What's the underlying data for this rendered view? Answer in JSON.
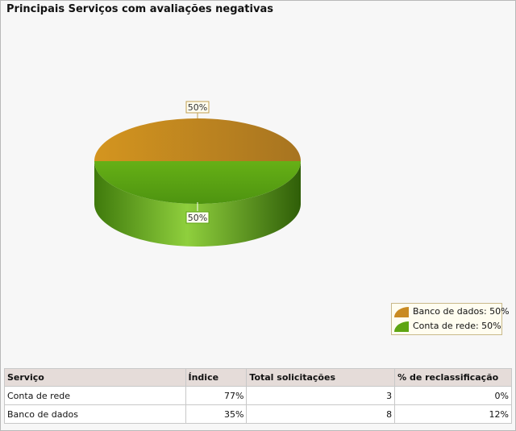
{
  "title": "Principais Serviços com avaliações negativas",
  "chart_data": {
    "type": "pie",
    "labels": [
      "Banco de dados",
      "Conta de rede"
    ],
    "values": [
      50,
      50
    ],
    "colors": [
      "#c98b23",
      "#5ea512"
    ],
    "data_labels": [
      "50%",
      "50%"
    ],
    "legend": [
      "Banco de dados: 50%",
      "Conta de rede: 50%"
    ],
    "legend_position": "bottom-right"
  },
  "table": {
    "headers": [
      "Serviço",
      "Índice",
      "Total solicitações",
      "% de reclassificação"
    ],
    "rows": [
      [
        "Conta de rede",
        "77%",
        "3",
        "0%"
      ],
      [
        "Banco de dados",
        "35%",
        "8",
        "12%"
      ]
    ]
  }
}
